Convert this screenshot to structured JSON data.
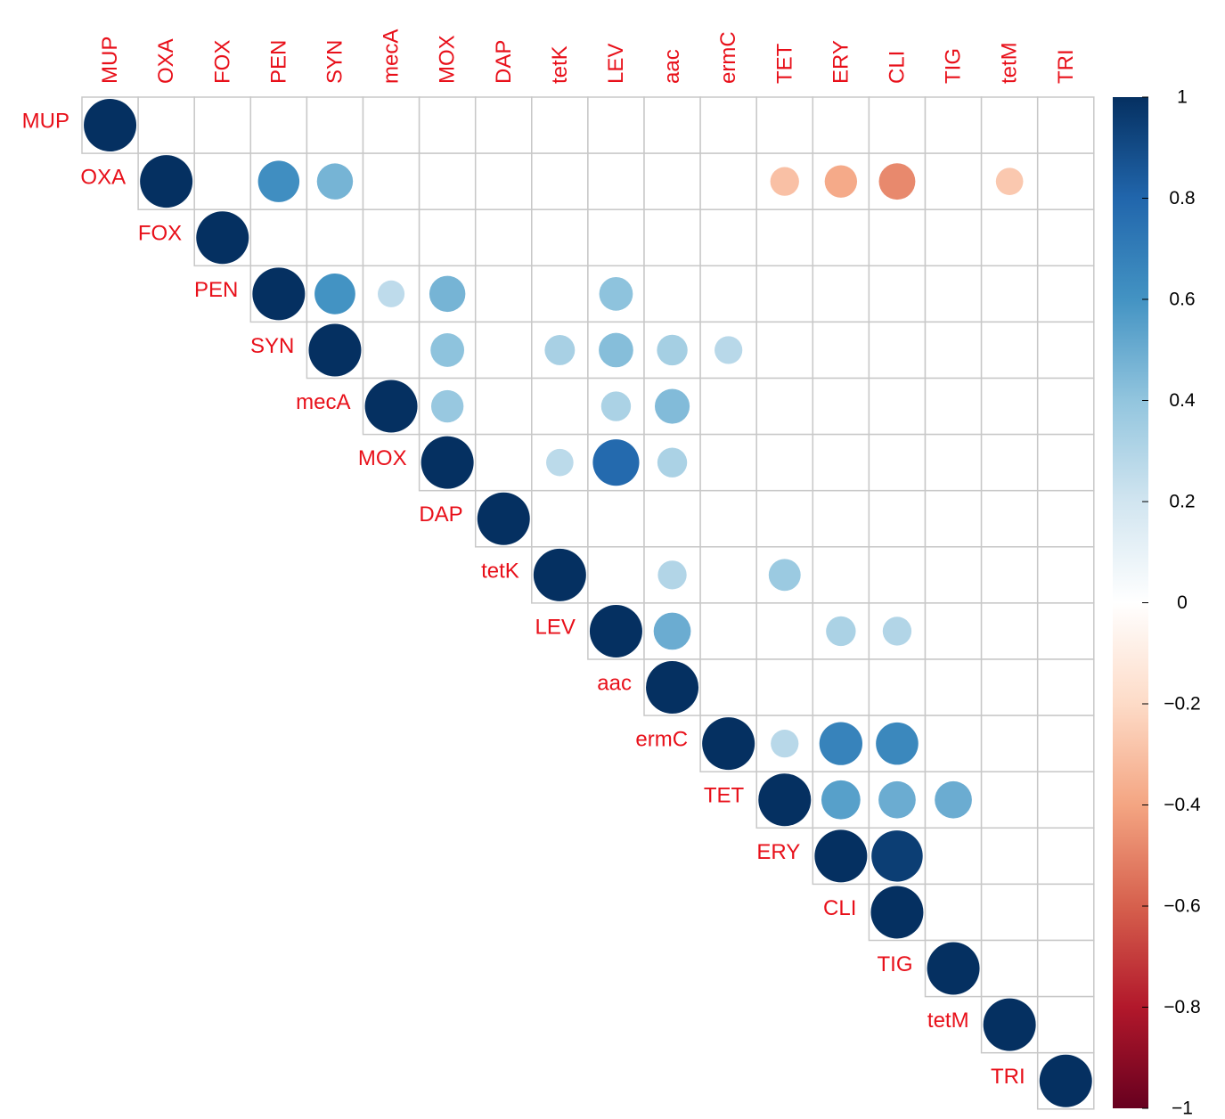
{
  "chart_data": {
    "type": "heatmap",
    "style": "correlation matrix, upper triangle, circle glyphs (size and color encode correlation)",
    "title": "",
    "variables": [
      "MUP",
      "OXA",
      "FOX",
      "PEN",
      "SYN",
      "mecA",
      "MOX",
      "DAP",
      "tetK",
      "LEV",
      "aac",
      "ermC",
      "TET",
      "ERY",
      "CLI",
      "TIG",
      "tetM",
      "TRI"
    ],
    "cells": [
      {
        "row": "MUP",
        "col": "MUP",
        "value": 1.0
      },
      {
        "row": "OXA",
        "col": "OXA",
        "value": 1.0
      },
      {
        "row": "OXA",
        "col": "PEN",
        "value": 0.62
      },
      {
        "row": "OXA",
        "col": "SYN",
        "value": 0.47
      },
      {
        "row": "OXA",
        "col": "TET",
        "value": -0.3
      },
      {
        "row": "OXA",
        "col": "ERY",
        "value": -0.38
      },
      {
        "row": "OXA",
        "col": "CLI",
        "value": -0.48
      },
      {
        "row": "OXA",
        "col": "tetM",
        "value": -0.27
      },
      {
        "row": "FOX",
        "col": "FOX",
        "value": 1.0
      },
      {
        "row": "PEN",
        "col": "PEN",
        "value": 1.0
      },
      {
        "row": "PEN",
        "col": "SYN",
        "value": 0.6
      },
      {
        "row": "PEN",
        "col": "mecA",
        "value": 0.26
      },
      {
        "row": "PEN",
        "col": "MOX",
        "value": 0.47
      },
      {
        "row": "PEN",
        "col": "LEV",
        "value": 0.41
      },
      {
        "row": "SYN",
        "col": "SYN",
        "value": 1.0
      },
      {
        "row": "SYN",
        "col": "MOX",
        "value": 0.41
      },
      {
        "row": "SYN",
        "col": "tetK",
        "value": 0.33
      },
      {
        "row": "SYN",
        "col": "LEV",
        "value": 0.43
      },
      {
        "row": "SYN",
        "col": "aac",
        "value": 0.34
      },
      {
        "row": "SYN",
        "col": "ermC",
        "value": 0.28
      },
      {
        "row": "mecA",
        "col": "mecA",
        "value": 1.0
      },
      {
        "row": "mecA",
        "col": "MOX",
        "value": 0.38
      },
      {
        "row": "mecA",
        "col": "LEV",
        "value": 0.32
      },
      {
        "row": "mecA",
        "col": "aac",
        "value": 0.44
      },
      {
        "row": "MOX",
        "col": "MOX",
        "value": 1.0
      },
      {
        "row": "MOX",
        "col": "tetK",
        "value": 0.27
      },
      {
        "row": "MOX",
        "col": "LEV",
        "value": 0.78
      },
      {
        "row": "MOX",
        "col": "aac",
        "value": 0.32
      },
      {
        "row": "DAP",
        "col": "DAP",
        "value": 1.0
      },
      {
        "row": "tetK",
        "col": "tetK",
        "value": 1.0
      },
      {
        "row": "tetK",
        "col": "aac",
        "value": 0.3
      },
      {
        "row": "tetK",
        "col": "TET",
        "value": 0.37
      },
      {
        "row": "LEV",
        "col": "LEV",
        "value": 1.0
      },
      {
        "row": "LEV",
        "col": "aac",
        "value": 0.5
      },
      {
        "row": "LEV",
        "col": "ERY",
        "value": 0.32
      },
      {
        "row": "LEV",
        "col": "CLI",
        "value": 0.3
      },
      {
        "row": "aac",
        "col": "aac",
        "value": 1.0
      },
      {
        "row": "ermC",
        "col": "ermC",
        "value": 1.0
      },
      {
        "row": "ermC",
        "col": "TET",
        "value": 0.28
      },
      {
        "row": "ermC",
        "col": "ERY",
        "value": 0.67
      },
      {
        "row": "ermC",
        "col": "CLI",
        "value": 0.65
      },
      {
        "row": "TET",
        "col": "TET",
        "value": 1.0
      },
      {
        "row": "TET",
        "col": "ERY",
        "value": 0.55
      },
      {
        "row": "TET",
        "col": "CLI",
        "value": 0.5
      },
      {
        "row": "TET",
        "col": "TIG",
        "value": 0.5
      },
      {
        "row": "ERY",
        "col": "ERY",
        "value": 1.0
      },
      {
        "row": "ERY",
        "col": "CLI",
        "value": 0.95
      },
      {
        "row": "CLI",
        "col": "CLI",
        "value": 1.0
      },
      {
        "row": "TIG",
        "col": "TIG",
        "value": 1.0
      },
      {
        "row": "tetM",
        "col": "tetM",
        "value": 1.0
      },
      {
        "row": "TRI",
        "col": "TRI",
        "value": 1.0
      }
    ],
    "colorbar": {
      "range": [
        -1,
        1
      ],
      "ticks": [
        "1",
        "0.8",
        "0.6",
        "0.4",
        "0.2",
        "0",
        "−0.2",
        "−0.4",
        "−0.6",
        "−0.8",
        "−1"
      ],
      "tick_values": [
        1,
        0.8,
        0.6,
        0.4,
        0.2,
        0,
        -0.2,
        -0.4,
        -0.6,
        -0.8,
        -1
      ],
      "palette": [
        "#67001f",
        "#b2182b",
        "#d6604d",
        "#f4a582",
        "#fddbc7",
        "#ffffff",
        "#d1e5f0",
        "#92c5de",
        "#4393c3",
        "#2166ac",
        "#053061"
      ]
    },
    "label_color": "#e8101a",
    "grid_color": "#c8c8c8"
  }
}
